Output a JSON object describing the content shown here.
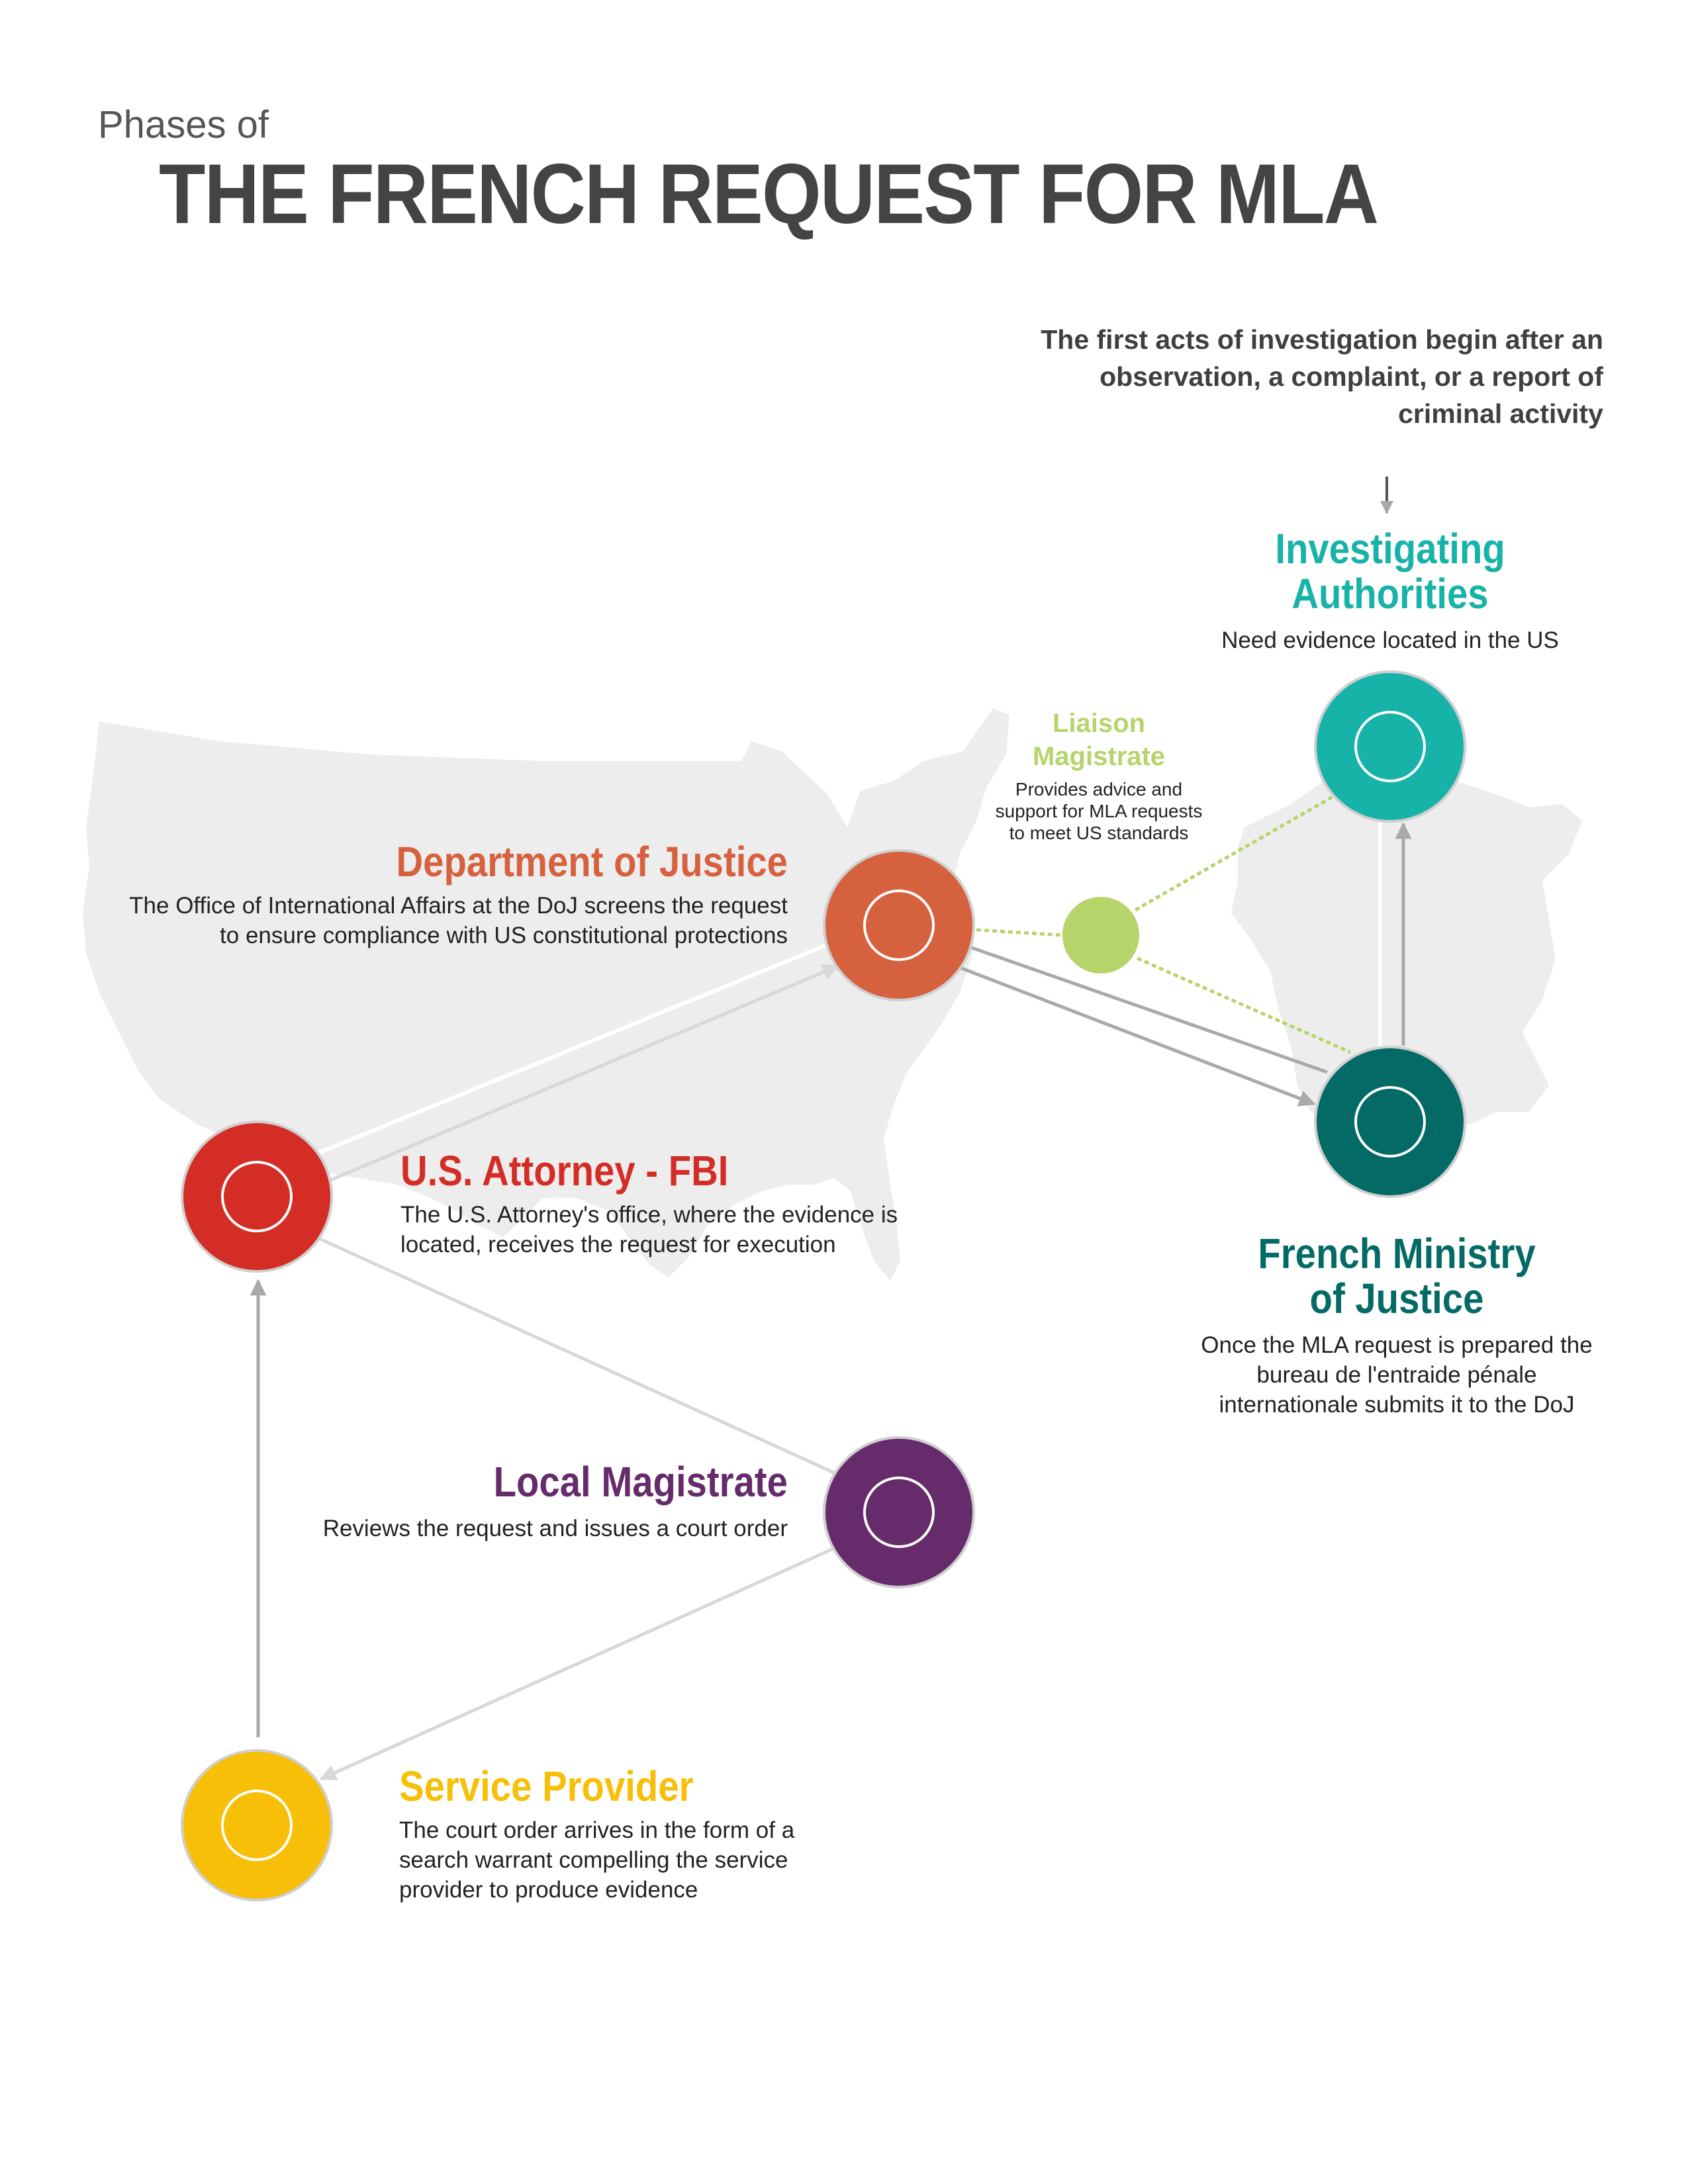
{
  "header": {
    "subtitle": "Phases of",
    "title": "THE FRENCH REQUEST FOR MLA"
  },
  "intro_text": "The first acts of investigation begin after an observation, a complaint, or a report of criminal activity",
  "nodes": {
    "investigating": {
      "title_line1": "Investigating",
      "title_line2": "Authorities",
      "description": "Need evidence located in the US",
      "color": "#17b3a8"
    },
    "french_moj": {
      "title_line1": "French Ministry",
      "title_line2": "of Justice",
      "description_line1": "Once the MLA request is prepared the",
      "description_line2": "bureau de l'entraide pénale",
      "description_line3": "internationale submits it to the DoJ",
      "color": "#046a66"
    },
    "liaison": {
      "title_line1": "Liaison",
      "title_line2": "Magistrate",
      "description_line1": "Provides advice and",
      "description_line2": "support for MLA requests",
      "description_line3": "to meet US standards",
      "color": "#b5d56b"
    },
    "doj": {
      "title": "Department of Justice",
      "description_line1": "The Office of International Affairs at the DoJ screens the request",
      "description_line2": "to ensure compliance with US constitutional protections",
      "color": "#d6613f"
    },
    "us_attorney": {
      "title": "U.S. Attorney - FBI",
      "description_line1": "The U.S. Attorney's office, where the evidence is",
      "description_line2": "located, receives the request for execution",
      "color": "#d42d26"
    },
    "local_magistrate": {
      "title": "Local Magistrate",
      "description": "Reviews the request and issues a court order",
      "color": "#662b6b"
    },
    "service_provider": {
      "title": "Service Provider",
      "description_line1": "The court order arrives in the form of a",
      "description_line2": "search warrant compelling the service",
      "description_line3": "provider to produce evidence",
      "color": "#f7bf07"
    }
  },
  "colors": {
    "map": "#ededed",
    "arrow_dark": "#a9a9a9",
    "arrow_light": "#e0e0e0",
    "title": "#444444"
  }
}
